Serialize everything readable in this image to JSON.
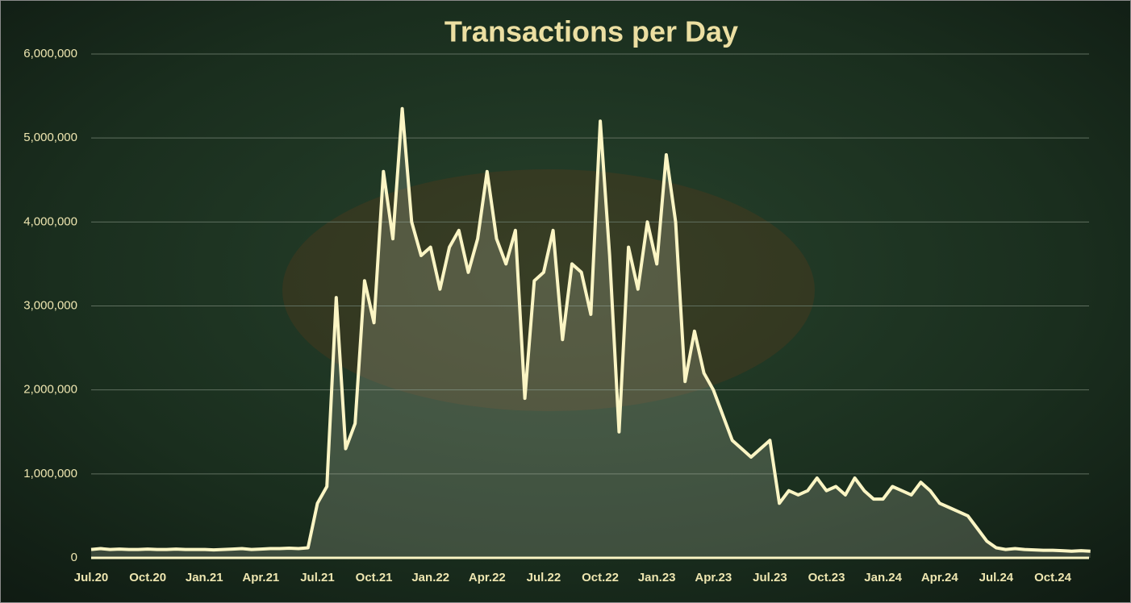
{
  "chart_data": {
    "type": "line",
    "title": "Transactions per Day",
    "categories": [
      "Jul.20",
      null,
      null,
      null,
      null,
      null,
      "Oct.20",
      null,
      null,
      null,
      null,
      null,
      "Jan.21",
      null,
      null,
      null,
      null,
      null,
      "Apr.21",
      null,
      null,
      null,
      null,
      null,
      "Jul.21",
      null,
      null,
      null,
      null,
      null,
      "Oct.21",
      null,
      null,
      null,
      null,
      null,
      "Jan.22",
      null,
      null,
      null,
      null,
      null,
      "Apr.22",
      null,
      null,
      null,
      null,
      null,
      "Jul.22",
      null,
      null,
      null,
      null,
      null,
      "Oct.22",
      null,
      null,
      null,
      null,
      null,
      "Jan.23",
      null,
      null,
      null,
      null,
      null,
      "Apr.23",
      null,
      null,
      null,
      null,
      null,
      "Jul.23",
      null,
      null,
      null,
      null,
      null,
      "Oct.23",
      null,
      null,
      null,
      null,
      null,
      "Jan.24",
      null,
      null,
      null,
      null,
      null,
      "Apr.24",
      null,
      null,
      null,
      null,
      null,
      "Jul.24",
      null,
      null,
      null,
      null,
      null,
      "Oct.24",
      null,
      null,
      null,
      null
    ],
    "series": [
      {
        "color": "#fbf5c4",
        "values": [
          100000,
          110000,
          100000,
          105000,
          100000,
          100000,
          105000,
          100000,
          100000,
          105000,
          100000,
          100000,
          100000,
          95000,
          100000,
          105000,
          110000,
          100000,
          105000,
          110000,
          110000,
          115000,
          110000,
          120000,
          650000,
          850000,
          3100000,
          1300000,
          1600000,
          3300000,
          2800000,
          4600000,
          3800000,
          5350000,
          4000000,
          3600000,
          3700000,
          3200000,
          3700000,
          3900000,
          3400000,
          3800000,
          4600000,
          3800000,
          3500000,
          3900000,
          1900000,
          3300000,
          3400000,
          3900000,
          2600000,
          3500000,
          3400000,
          2900000,
          5200000,
          3600000,
          1500000,
          3700000,
          3200000,
          4000000,
          3500000,
          4800000,
          4000000,
          2100000,
          2700000,
          2200000,
          2000000,
          1700000,
          1400000,
          1300000,
          1200000,
          1300000,
          1400000,
          650000,
          800000,
          750000,
          800000,
          950000,
          800000,
          850000,
          750000,
          950000,
          800000,
          700000,
          700000,
          850000,
          800000,
          750000,
          900000,
          800000,
          650000,
          600000,
          550000,
          500000,
          350000,
          200000,
          120000,
          100000,
          110000,
          100000,
          95000,
          90000,
          90000,
          85000,
          80000,
          85000,
          80000
        ]
      }
    ],
    "ylim": [
      0,
      6000000
    ],
    "yticks": [
      0,
      {
        "value": 1000000,
        "label": "1,000,000"
      },
      {
        "value": 2000000,
        "label": "2,000,000"
      },
      {
        "value": 3000000,
        "label": "3,000,000"
      },
      {
        "value": 4000000,
        "label": "4,000,000"
      },
      {
        "value": 5000000,
        "label": "5,000,000"
      },
      {
        "value": 6000000,
        "label": "6,000,000"
      }
    ],
    "grid": true
  }
}
